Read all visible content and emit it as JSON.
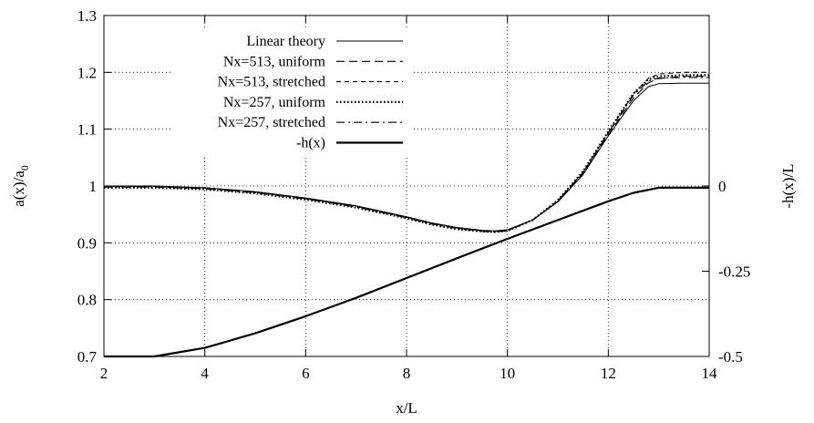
{
  "chart_data": {
    "type": "line",
    "title": "",
    "xlabel": "x/L",
    "ylabel": "a(x)/a",
    "ylabel_subscript": "0",
    "y2label": "-h(x)/L",
    "xlim": [
      2,
      14
    ],
    "ylim": [
      0.7,
      1.3
    ],
    "y2lim": [
      -0.5,
      0.5
    ],
    "xticks": [
      2,
      4,
      6,
      8,
      10,
      12,
      14
    ],
    "xtick_labels": [
      "2",
      "4",
      "6",
      "8",
      "10",
      "12",
      "14"
    ],
    "yticks": [
      0.7,
      0.8,
      0.9,
      1.0,
      1.1,
      1.2,
      1.3
    ],
    "ytick_labels": [
      "0.7",
      "0.8",
      "0.9",
      "1",
      "1.1",
      "1.2",
      "1.3"
    ],
    "y2ticks": [
      -0.5,
      -0.25,
      0
    ],
    "y2tick_labels": [
      "-0.5",
      "-0.25",
      "0"
    ],
    "grid": true,
    "legend_position": "top-left",
    "series": [
      {
        "name": "Linear theory",
        "axis": "y",
        "style": "solid-thin",
        "x": [
          2,
          3,
          4,
          5,
          6,
          7,
          8,
          8.5,
          9,
          9.5,
          9.75,
          10,
          10.5,
          11,
          11.5,
          12,
          12.5,
          12.8,
          13,
          13.5,
          14
        ],
        "y": [
          1.0,
          1.0,
          0.997,
          0.99,
          0.979,
          0.965,
          0.946,
          0.935,
          0.927,
          0.922,
          0.921,
          0.923,
          0.94,
          0.972,
          1.02,
          1.088,
          1.15,
          1.175,
          1.18,
          1.181,
          1.181
        ]
      },
      {
        "name": "Nx=513, uniform",
        "axis": "y",
        "style": "dashed",
        "x": [
          2,
          3,
          4,
          5,
          6,
          7,
          8,
          8.5,
          9,
          9.5,
          9.75,
          10,
          10.5,
          11,
          11.5,
          12,
          12.5,
          12.8,
          13,
          13.5,
          14
        ],
        "y": [
          0.999,
          0.999,
          0.996,
          0.989,
          0.978,
          0.964,
          0.945,
          0.934,
          0.926,
          0.921,
          0.92,
          0.922,
          0.94,
          0.973,
          1.022,
          1.09,
          1.155,
          1.182,
          1.189,
          1.193,
          1.193
        ]
      },
      {
        "name": "Nx=513, stretched",
        "axis": "y",
        "style": "short-dashed",
        "x": [
          2,
          3,
          4,
          5,
          6,
          7,
          8,
          8.5,
          9,
          9.5,
          9.75,
          10,
          10.5,
          11,
          11.5,
          12,
          12.5,
          12.8,
          13,
          13.5,
          14
        ],
        "y": [
          0.999,
          0.999,
          0.996,
          0.989,
          0.978,
          0.964,
          0.945,
          0.934,
          0.926,
          0.921,
          0.92,
          0.922,
          0.94,
          0.974,
          1.024,
          1.094,
          1.162,
          1.19,
          1.197,
          1.2,
          1.2
        ]
      },
      {
        "name": "Nx=257, uniform",
        "axis": "y",
        "style": "dotted",
        "x": [
          2,
          3,
          4,
          5,
          6,
          7,
          8,
          8.5,
          9,
          9.5,
          9.75,
          10,
          10.5,
          11,
          11.5,
          12,
          12.5,
          12.8,
          13,
          13.5,
          14
        ],
        "y": [
          0.997,
          0.997,
          0.994,
          0.987,
          0.976,
          0.962,
          0.943,
          0.932,
          0.924,
          0.92,
          0.919,
          0.921,
          0.94,
          0.975,
          1.026,
          1.096,
          1.163,
          1.188,
          1.193,
          1.195,
          1.195
        ]
      },
      {
        "name": "Nx=257, stretched",
        "axis": "y",
        "style": "dash-dot",
        "x": [
          2,
          3,
          4,
          5,
          6,
          7,
          8,
          8.5,
          9,
          9.5,
          9.75,
          10,
          10.5,
          11,
          11.5,
          12,
          12.5,
          12.8,
          13,
          13.5,
          14
        ],
        "y": [
          0.998,
          0.998,
          0.995,
          0.988,
          0.977,
          0.963,
          0.944,
          0.933,
          0.925,
          0.92,
          0.919,
          0.921,
          0.94,
          0.974,
          1.024,
          1.093,
          1.16,
          1.185,
          1.19,
          1.191,
          1.191
        ]
      },
      {
        "name": "-h(x)",
        "axis": "y2",
        "style": "solid-thick",
        "x": [
          2,
          3,
          4,
          5,
          6,
          7,
          8,
          9,
          10,
          11,
          12,
          12.5,
          13,
          13.5,
          14
        ],
        "y": [
          -0.5,
          -0.5,
          -0.475,
          -0.432,
          -0.382,
          -0.328,
          -0.27,
          -0.212,
          -0.155,
          -0.1,
          -0.045,
          -0.02,
          -0.005,
          -0.005,
          -0.005
        ]
      }
    ]
  }
}
